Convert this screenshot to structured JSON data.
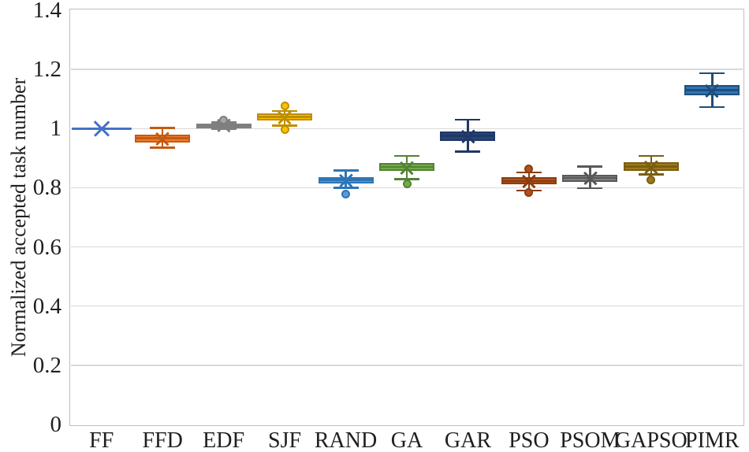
{
  "chart_data": {
    "type": "boxplot",
    "title": "",
    "xlabel": "",
    "ylabel": "Normalized accepted task number",
    "ylim": [
      0,
      1.4
    ],
    "yticks": [
      0,
      0.2,
      0.4,
      0.6,
      0.8,
      1,
      1.2,
      1.4
    ],
    "ytick_labels": [
      "0",
      "0.2",
      "0.4",
      "0.6",
      "0.8",
      "1",
      "1.2",
      "1.4"
    ],
    "grid": true,
    "legend": "none",
    "categories": [
      "FF",
      "FFD",
      "EDF",
      "SJF",
      "RAND",
      "GA",
      "GAR",
      "PSO",
      "PSOM",
      "GAPSO",
      "PIMR"
    ],
    "series": [
      {
        "name": "FF",
        "flat": true,
        "median": 1.0,
        "mean": 1.0,
        "q1": 1.0,
        "q3": 1.0,
        "whisker_low": 1.0,
        "whisker_high": 1.0,
        "outliers": [],
        "fill": "#4472c4",
        "stroke": "#4472c4"
      },
      {
        "name": "FFD",
        "flat": false,
        "median": 0.968,
        "mean": 0.965,
        "q1": 0.953,
        "q3": 0.98,
        "whisker_low": 0.935,
        "whisker_high": 1.002,
        "outliers": [],
        "fill": "#ed7d31",
        "stroke": "#c55a11"
      },
      {
        "name": "EDF",
        "flat": false,
        "median": 1.01,
        "mean": 1.011,
        "q1": 1.004,
        "q3": 1.018,
        "whisker_low": 0.998,
        "whisker_high": 1.021,
        "outliers": [
          1.028
        ],
        "fill": "#a5a5a5",
        "stroke": "#7f7f7f"
      },
      {
        "name": "SJF",
        "flat": false,
        "median": 1.04,
        "mean": 1.038,
        "q1": 1.028,
        "q3": 1.052,
        "whisker_low": 1.01,
        "whisker_high": 1.059,
        "outliers": [
          1.076,
          0.997
        ],
        "fill": "#ffc000",
        "stroke": "#bf8f00"
      },
      {
        "name": "RAND",
        "flat": false,
        "median": 0.826,
        "mean": 0.823,
        "q1": 0.815,
        "q3": 0.837,
        "whisker_low": 0.8,
        "whisker_high": 0.858,
        "outliers": [
          0.778
        ],
        "fill": "#5b9bd5",
        "stroke": "#2e75b6"
      },
      {
        "name": "GA",
        "flat": false,
        "median": 0.87,
        "mean": 0.868,
        "q1": 0.857,
        "q3": 0.884,
        "whisker_low": 0.829,
        "whisker_high": 0.907,
        "outliers": [
          0.812
        ],
        "fill": "#70ad47",
        "stroke": "#548235"
      },
      {
        "name": "GAR",
        "flat": false,
        "median": 0.975,
        "mean": 0.973,
        "q1": 0.958,
        "q3": 0.99,
        "whisker_low": 0.922,
        "whisker_high": 1.03,
        "outliers": [],
        "fill": "#264478",
        "stroke": "#1f3864"
      },
      {
        "name": "PSO",
        "flat": false,
        "median": 0.822,
        "mean": 0.822,
        "q1": 0.812,
        "q3": 0.837,
        "whisker_low": 0.791,
        "whisker_high": 0.852,
        "outliers": [
          0.863,
          0.785
        ],
        "fill": "#b2511a",
        "stroke": "#8a3d10"
      },
      {
        "name": "PSOM",
        "flat": false,
        "median": 0.833,
        "mean": 0.833,
        "q1": 0.82,
        "q3": 0.845,
        "whisker_low": 0.798,
        "whisker_high": 0.872,
        "outliers": [],
        "fill": "#808080",
        "stroke": "#595959"
      },
      {
        "name": "GAPSO",
        "flat": false,
        "median": 0.872,
        "mean": 0.87,
        "q1": 0.858,
        "q3": 0.886,
        "whisker_low": 0.845,
        "whisker_high": 0.907,
        "outliers": [
          0.827
        ],
        "fill": "#9c7a1c",
        "stroke": "#7a5e13"
      },
      {
        "name": "PIMR",
        "flat": false,
        "median": 1.13,
        "mean": 1.128,
        "q1": 1.112,
        "q3": 1.147,
        "whisker_low": 1.073,
        "whisker_high": 1.187,
        "outliers": [],
        "fill": "#2e75b6",
        "stroke": "#1f4e79"
      }
    ],
    "colors": {
      "gridline": "#d9d9d9",
      "plot_border": "#bfbfbf",
      "text": "#1f1f1f",
      "background": "#ffffff"
    }
  }
}
